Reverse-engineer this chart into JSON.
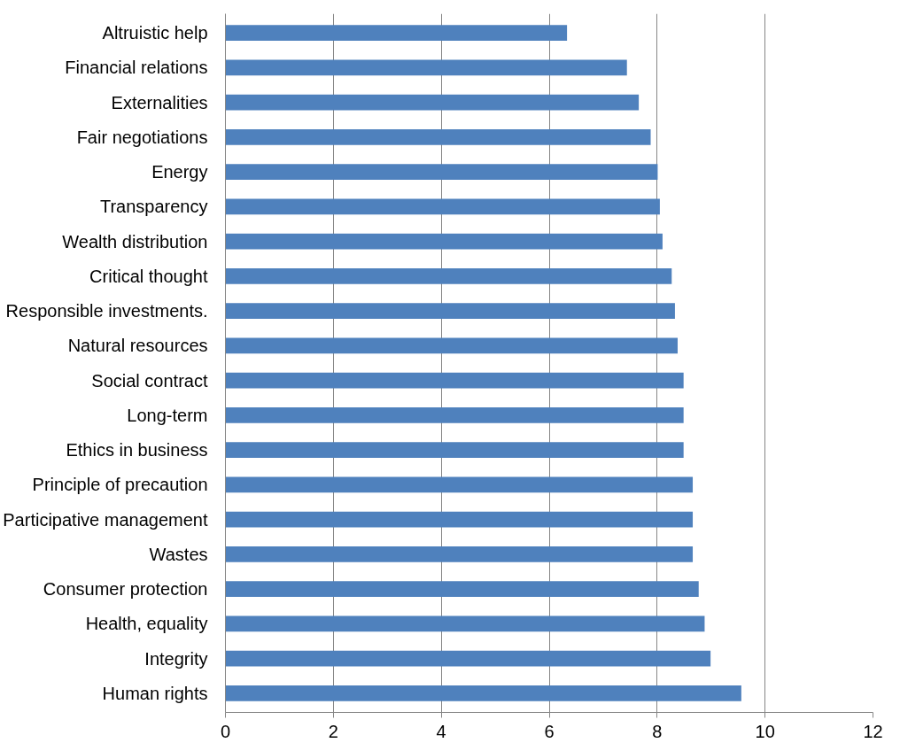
{
  "chart_data": {
    "type": "bar",
    "orientation": "horizontal",
    "color": "#4f81bd",
    "categories": [
      "Altruistic help",
      "Financial relations",
      "Externalities",
      "Fair negotiations",
      "Energy",
      "Transparency",
      "Wealth distribution",
      "Critical thought",
      "Responsible investments.",
      "Natural resources",
      "Social contract",
      "Long-term",
      "Ethics in business",
      "Principle of precaution",
      "Participative management",
      "Wastes",
      "Consumer protection",
      "Health, equality",
      "Integrity",
      "Human rights"
    ],
    "values": [
      6.33,
      7.44,
      7.66,
      7.88,
      8.01,
      8.05,
      8.1,
      8.27,
      8.33,
      8.38,
      8.49,
      8.49,
      8.49,
      8.66,
      8.66,
      8.66,
      8.77,
      8.88,
      8.99,
      9.56
    ],
    "xlim": [
      0,
      12
    ],
    "xticks": [
      0,
      2,
      4,
      6,
      8,
      10,
      12
    ],
    "grid": "x"
  }
}
